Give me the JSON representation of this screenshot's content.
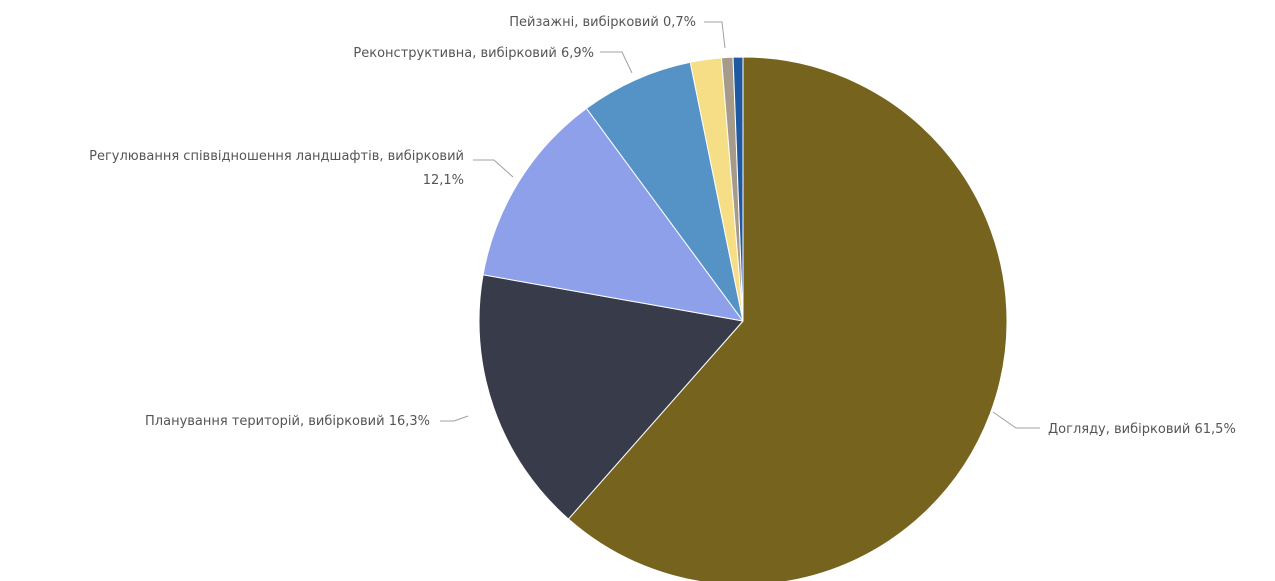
{
  "chart_data": {
    "type": "pie",
    "title": "",
    "start_angle_deg": 0,
    "direction": "clockwise",
    "legend": "none",
    "slices": [
      {
        "label": "Догляду, вибірковий 61,5%",
        "value": 61.5,
        "color": "#76631d"
      },
      {
        "label": "Планування територій, вибірковий 16,3%",
        "value": 16.3,
        "color": "#373b4a"
      },
      {
        "label": "Регулювання співвідношення ландшафтів, вибірковий 12,1%",
        "value": 12.1,
        "color": "#8ea0e9"
      },
      {
        "label": "Реконструктивна, вибірковий 6,9%",
        "value": 6.9,
        "color": "#5593c7"
      },
      {
        "label": "",
        "value": 1.9,
        "color": "#f6de86"
      },
      {
        "label": "Пейзажні, вибірковий 0,7%",
        "value": 0.7,
        "color": "#a69a8a"
      },
      {
        "label": "",
        "value": 0.6,
        "color": "#1f5aa0"
      }
    ]
  }
}
